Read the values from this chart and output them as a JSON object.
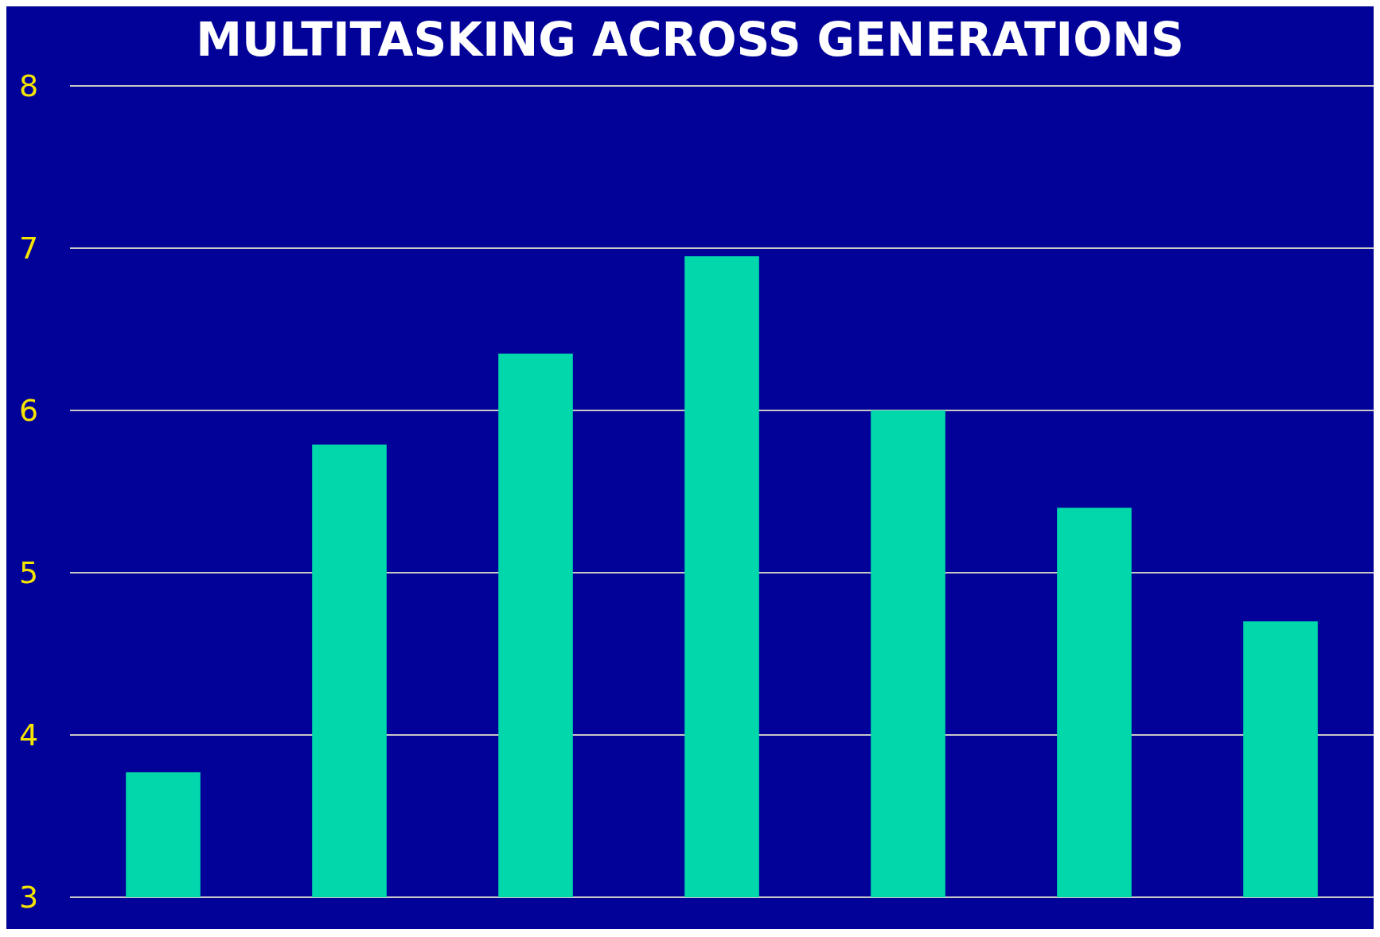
{
  "chart_data": {
    "type": "bar",
    "title": "MULTITASKING ACROSS GENERATIONS",
    "categories": [
      null,
      null,
      null,
      null,
      null,
      null,
      null
    ],
    "values": [
      3.77,
      5.79,
      6.35,
      6.95,
      6.0,
      5.4,
      4.7
    ],
    "color": "#00d8ac",
    "ylim": [
      3,
      8
    ],
    "yticks": [
      3,
      4,
      5,
      6,
      7,
      8
    ],
    "grid": "y"
  }
}
